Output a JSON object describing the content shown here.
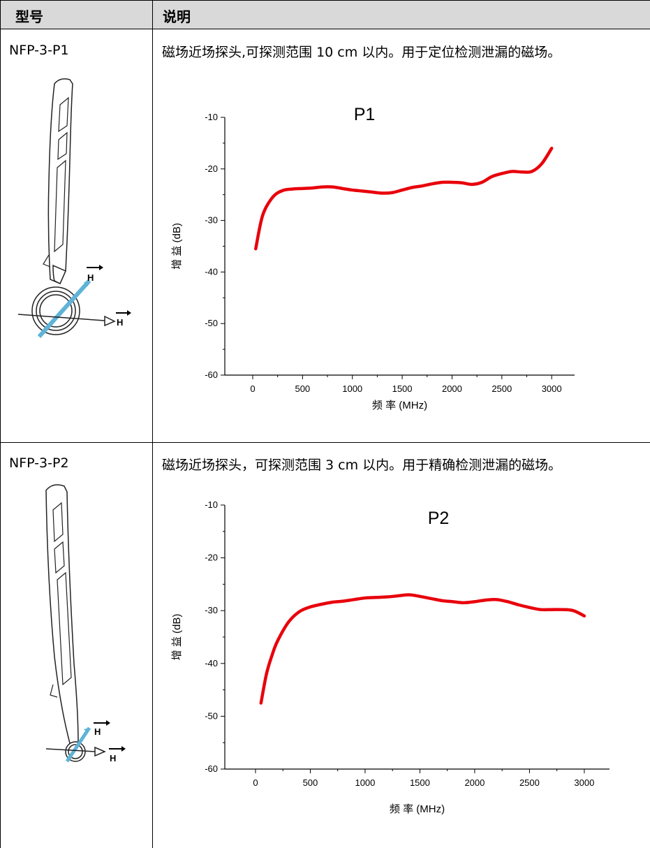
{
  "table": {
    "header": {
      "model": "型号",
      "description": "说明"
    },
    "rows": [
      {
        "model": "NFP-3-P1",
        "description": "磁场近场探头,可探测范围 10 cm 以内。用于定位检测泄漏的磁场。",
        "h_label_1": "H",
        "h_label_2": "H"
      },
      {
        "model": "NFP-3-P2",
        "description": "磁场近场探头，可探测范围 3 cm 以内。用于精确检测泄漏的磁场。",
        "h_label_1": "H",
        "h_label_2": "H"
      }
    ]
  },
  "colors": {
    "curve": "#e8000b",
    "probe_arrow": "#5fb3d6",
    "header_bg": "#d9d9d9"
  },
  "chart_data": [
    {
      "type": "line",
      "title": "P1",
      "xlabel": "频 率 (MHz)",
      "ylabel": "增 益 (dB)",
      "xlim": [
        0,
        3000
      ],
      "ylim": [
        -60,
        -10
      ],
      "xticks": [
        0,
        500,
        1000,
        1500,
        2000,
        2500,
        3000
      ],
      "yticks": [
        -10,
        -20,
        -30,
        -40,
        -50,
        -60
      ],
      "series": [
        {
          "x": [
            30,
            100,
            200,
            300,
            400,
            500,
            600,
            700,
            800,
            900,
            1000,
            1100,
            1200,
            1300,
            1400,
            1500,
            1600,
            1700,
            1800,
            1900,
            2000,
            2100,
            2200,
            2300,
            2400,
            2500,
            2600,
            2700,
            2800,
            2900,
            3000
          ],
          "values": [
            -35.5,
            -29.0,
            -25.5,
            -24.2,
            -23.9,
            -23.8,
            -23.7,
            -23.5,
            -23.5,
            -23.8,
            -24.1,
            -24.3,
            -24.5,
            -24.7,
            -24.6,
            -24.1,
            -23.6,
            -23.3,
            -22.9,
            -22.6,
            -22.6,
            -22.7,
            -23.0,
            -22.6,
            -21.5,
            -20.9,
            -20.5,
            -20.6,
            -20.5,
            -19.0,
            -16.0
          ]
        }
      ]
    },
    {
      "type": "line",
      "title": "P2",
      "xlabel": "频 率 (MHz)",
      "ylabel": "增 益 (dB)",
      "xlim": [
        0,
        3000
      ],
      "ylim": [
        -60,
        -10
      ],
      "xticks": [
        0,
        500,
        1000,
        1500,
        2000,
        2500,
        3000
      ],
      "yticks": [
        -10,
        -20,
        -30,
        -40,
        -50,
        -60
      ],
      "series": [
        {
          "x": [
            50,
            100,
            150,
            200,
            300,
            400,
            500,
            600,
            700,
            800,
            900,
            1000,
            1100,
            1200,
            1300,
            1400,
            1500,
            1600,
            1700,
            1800,
            1900,
            2000,
            2100,
            2200,
            2300,
            2400,
            2500,
            2600,
            2700,
            2800,
            2900,
            3000
          ],
          "values": [
            -47.5,
            -42.0,
            -38.5,
            -35.8,
            -32.2,
            -30.2,
            -29.3,
            -28.8,
            -28.4,
            -28.2,
            -27.9,
            -27.6,
            -27.5,
            -27.4,
            -27.2,
            -27.0,
            -27.3,
            -27.7,
            -28.1,
            -28.3,
            -28.5,
            -28.3,
            -28.0,
            -27.9,
            -28.3,
            -28.9,
            -29.4,
            -29.8,
            -29.8,
            -29.8,
            -30.0,
            -31.0
          ]
        }
      ]
    }
  ]
}
